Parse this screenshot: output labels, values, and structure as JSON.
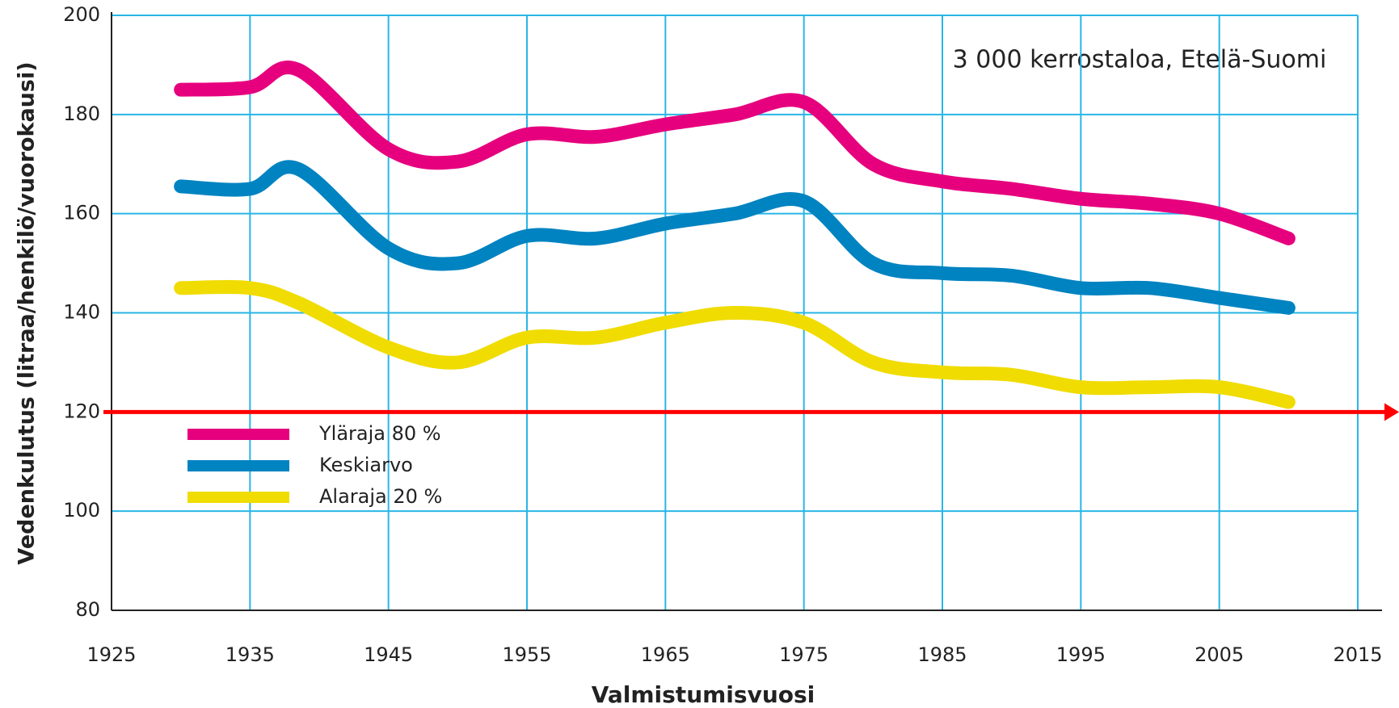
{
  "chart_data": {
    "type": "line",
    "annotation": "3 000 kerrostaloa, Etelä-Suomi",
    "x_label": "Valmistumisvuosi",
    "y_label": "Vedenkulutus (litraa/henkilö/vuorokausi)",
    "x": [
      1930,
      1935,
      1938.5,
      1945,
      1950,
      1955,
      1960,
      1965,
      1970,
      1975,
      1980,
      1985,
      1990,
      1995,
      2000,
      2005,
      2010
    ],
    "series": [
      {
        "name": "Yläraja 80 %",
        "color": "#e6007e",
        "values": [
          185,
          185.5,
          189,
          173,
          170.5,
          176,
          175.5,
          178,
          180,
          182.5,
          170,
          166.5,
          165,
          163,
          162,
          160,
          155
        ]
      },
      {
        "name": "Keskiarvo",
        "color": "#0083c1",
        "values": [
          165.5,
          165,
          169,
          153,
          150,
          155.5,
          155,
          158,
          160,
          162.5,
          150,
          148,
          147.5,
          145,
          145,
          143,
          141
        ]
      },
      {
        "name": "Alaraja 20 %",
        "color": "#f0dc00",
        "values": [
          145,
          145,
          142,
          133,
          130,
          135,
          135,
          138,
          140,
          138,
          130,
          128,
          127.5,
          125,
          125,
          125,
          122
        ]
      }
    ],
    "reference_line": {
      "value": 120,
      "color": "#ff0000"
    },
    "xlim": [
      1925,
      2015
    ],
    "xticks": [
      1925,
      1935,
      1945,
      1955,
      1965,
      1975,
      1985,
      1995,
      2005,
      2015
    ],
    "ylim": [
      80,
      200
    ],
    "yticks": [
      80,
      100,
      120,
      140,
      160,
      180,
      200
    ],
    "grid": true,
    "grid_color": "#29b6e6",
    "legend": "upper left"
  }
}
